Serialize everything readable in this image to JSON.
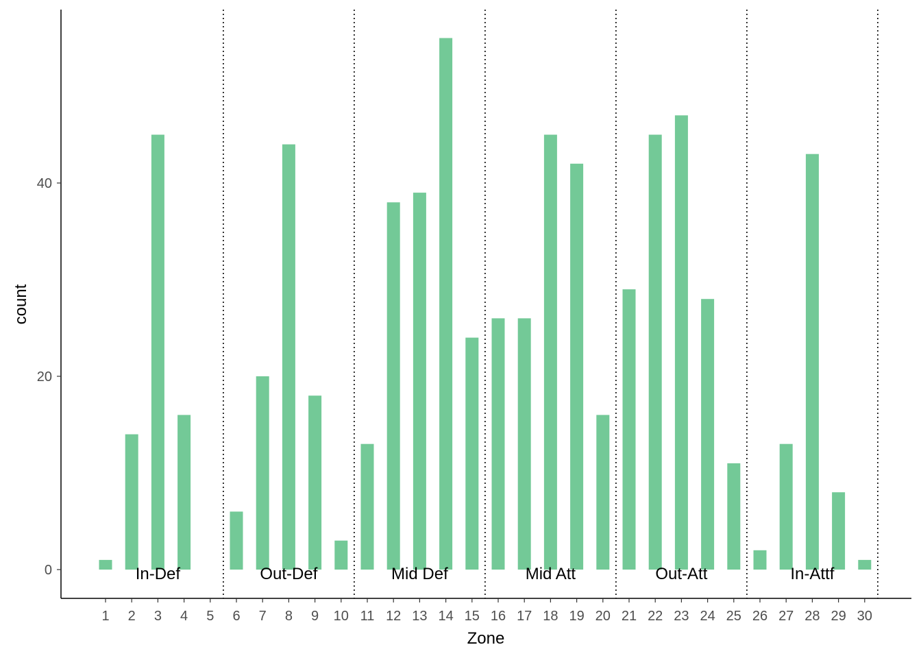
{
  "chart_data": {
    "type": "bar",
    "title": "",
    "xlabel": "Zone",
    "ylabel": "count",
    "categories": [
      "1",
      "2",
      "3",
      "4",
      "5",
      "6",
      "7",
      "8",
      "9",
      "10",
      "11",
      "12",
      "13",
      "14",
      "15",
      "16",
      "17",
      "18",
      "19",
      "20",
      "21",
      "22",
      "23",
      "24",
      "25",
      "26",
      "27",
      "28",
      "29",
      "30"
    ],
    "values": [
      1,
      14,
      45,
      16,
      0,
      6,
      20,
      44,
      18,
      3,
      13,
      38,
      39,
      55,
      24,
      26,
      26,
      45,
      42,
      16,
      29,
      45,
      47,
      28,
      11,
      2,
      13,
      43,
      8,
      1
    ],
    "ylim": [
      -3,
      58
    ],
    "yticks": [
      0,
      20,
      40
    ],
    "bar_color": "#73C997",
    "grid": false,
    "legend": "none",
    "dividers_after": [
      5,
      10,
      15,
      20,
      25,
      30
    ],
    "groups": [
      {
        "label": "In-Def",
        "center": 3
      },
      {
        "label": "Out-Def",
        "center": 8
      },
      {
        "label": "Mid Def",
        "center": 13
      },
      {
        "label": "Mid Att",
        "center": 18
      },
      {
        "label": "Out-Att",
        "center": 23
      },
      {
        "label": "In-Attf",
        "center": 28
      }
    ]
  }
}
